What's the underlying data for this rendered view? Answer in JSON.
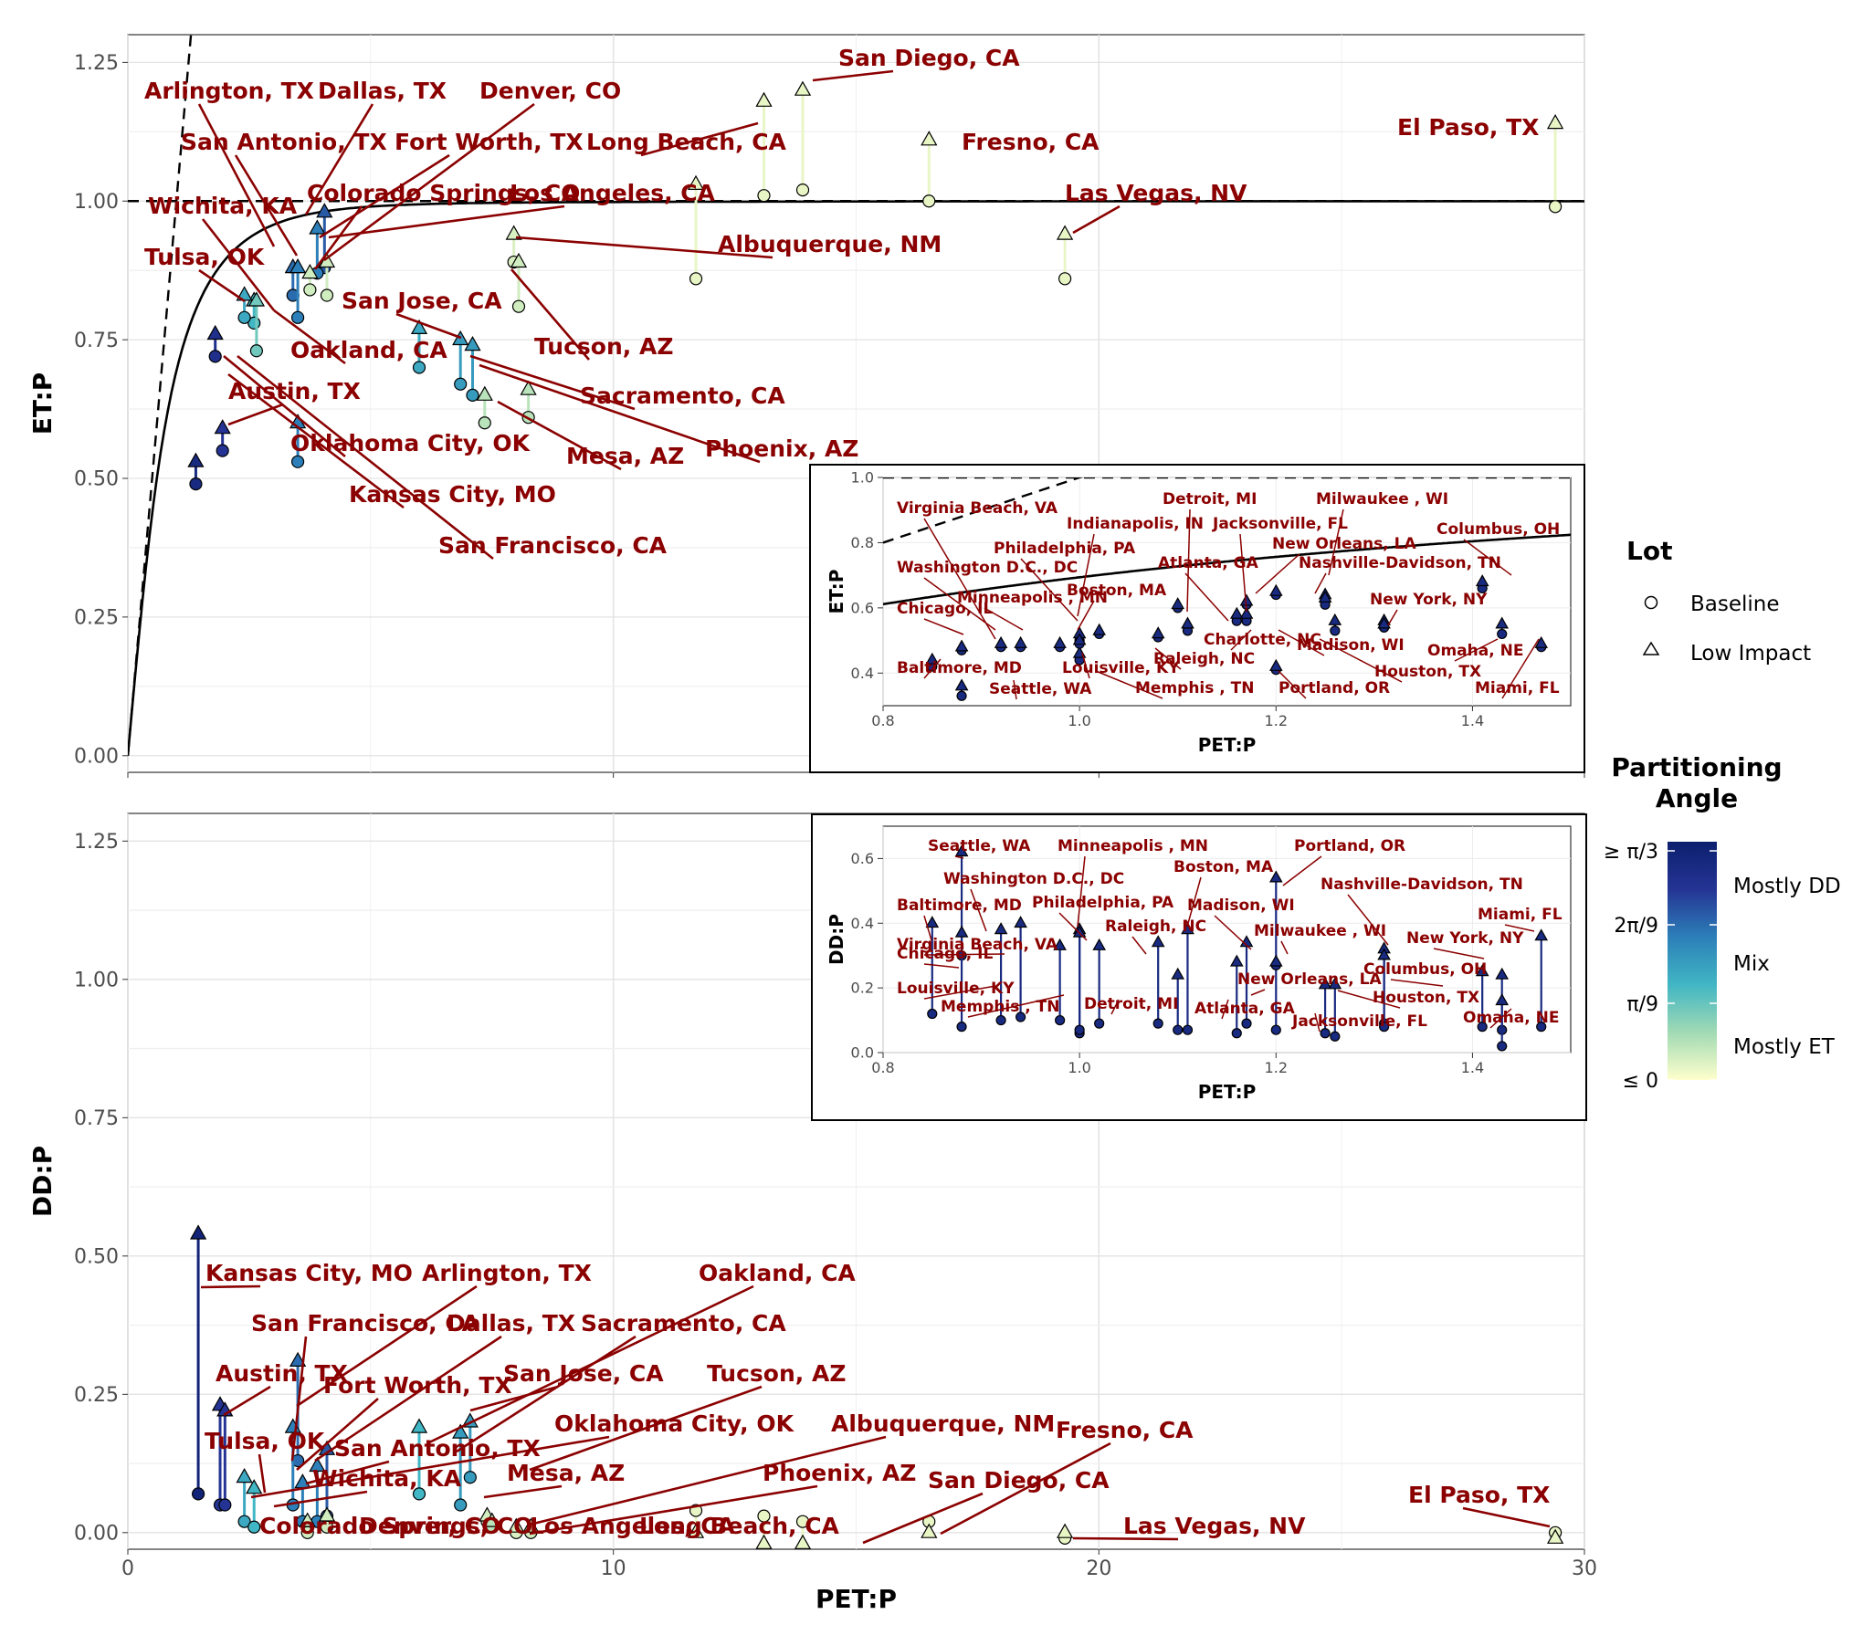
{
  "chart_data": [
    {
      "type": "scatter",
      "panel": "top-main",
      "xlabel": "PET:P",
      "ylabel": "ET:P",
      "xlim": [
        0,
        30
      ],
      "ylim": [
        -0.03,
        1.3
      ],
      "xticks": [
        "0",
        "10",
        "20",
        "30"
      ],
      "yticks": [
        "0.00",
        "0.25",
        "0.50",
        "0.75",
        "1.00",
        "1.25"
      ],
      "grid": true,
      "reference_lines": [
        "y = 1 (dashed)",
        "y = x (dashed)",
        "Budyko curve (solid)"
      ],
      "points": [
        {
          "label": "Arlington, TX",
          "x": 3.4,
          "baseline": 0.83,
          "low_impact": 0.88,
          "angle": 0.65
        },
        {
          "label": "Dallas, TX",
          "x": 4.05,
          "baseline": 0.88,
          "low_impact": 0.98,
          "angle": 0.7
        },
        {
          "label": "Denver, CO",
          "x": 4.1,
          "baseline": 0.83,
          "low_impact": 0.89,
          "angle": 0.1
        },
        {
          "label": "San Antonio, TX",
          "x": 3.5,
          "baseline": 0.79,
          "low_impact": 0.88,
          "angle": 0.6
        },
        {
          "label": "Fort Worth, TX",
          "x": 3.9,
          "baseline": 0.87,
          "low_impact": 0.95,
          "angle": 0.6
        },
        {
          "label": "Colorado Springs, CO",
          "x": 3.75,
          "baseline": 0.84,
          "low_impact": 0.87,
          "angle": 0.1
        },
        {
          "label": "Los Angeles, CA",
          "x": 11.7,
          "baseline": 0.86,
          "low_impact": 1.03,
          "angle": 0.05
        },
        {
          "label": "Long Beach, CA",
          "x": 13.1,
          "baseline": 1.01,
          "low_impact": 1.18,
          "angle": 0.05
        },
        {
          "label": "San Diego, CA",
          "x": 13.9,
          "baseline": 1.02,
          "low_impact": 1.2,
          "angle": 0.05
        },
        {
          "label": "Fresno, CA",
          "x": 16.5,
          "baseline": 1.0,
          "low_impact": 1.11,
          "angle": 0.05
        },
        {
          "label": "El Paso, TX",
          "x": 29.4,
          "baseline": 0.99,
          "low_impact": 1.14,
          "angle": 0.05
        },
        {
          "label": "Las Vegas, NV",
          "x": 19.3,
          "baseline": 0.86,
          "low_impact": 0.94,
          "angle": 0.05
        },
        {
          "label": "Albuquerque, NM",
          "x": 7.95,
          "baseline": 0.89,
          "low_impact": 0.94,
          "angle": 0.08
        },
        {
          "label": "Tucson, AZ",
          "x": 8.05,
          "baseline": 0.81,
          "low_impact": 0.89,
          "angle": 0.1
        },
        {
          "label": "Wichita, KA",
          "x": 2.6,
          "baseline": 0.78,
          "low_impact": 0.82,
          "angle": 0.4
        },
        {
          "label": "Tulsa, OK",
          "x": 2.4,
          "baseline": 0.79,
          "low_impact": 0.83,
          "angle": 0.45
        },
        {
          "label": "Oakland, CA",
          "x": 2.65,
          "baseline": 0.73,
          "low_impact": 0.82,
          "angle": 0.3
        },
        {
          "label": "San Jose, CA",
          "x": 6.0,
          "baseline": 0.7,
          "low_impact": 0.77,
          "angle": 0.45
        },
        {
          "label": "Sacramento, CA",
          "x": 6.85,
          "baseline": 0.67,
          "low_impact": 0.75,
          "angle": 0.5
        },
        {
          "label": "Phoenix, AZ",
          "x": 7.1,
          "baseline": 0.65,
          "low_impact": 0.74,
          "angle": 0.5
        },
        {
          "label": "Mesa, AZ",
          "x": 7.35,
          "baseline": 0.6,
          "low_impact": 0.65,
          "angle": 0.15
        },
        {
          "label": "Mesa, AZ (2)",
          "x": 8.25,
          "baseline": 0.61,
          "low_impact": 0.66,
          "angle": 0.15
        },
        {
          "label": "Austin, TX",
          "x": 1.95,
          "baseline": 0.55,
          "low_impact": 0.59,
          "angle": 0.8
        },
        {
          "label": "Oklahoma City, OK",
          "x": 1.8,
          "baseline": 0.72,
          "low_impact": 0.76,
          "angle": 0.85
        },
        {
          "label": "Kansas City, MO",
          "x": 1.4,
          "baseline": 0.49,
          "low_impact": 0.53,
          "angle": 0.9
        },
        {
          "label": "San Francisco, CA",
          "x": 3.5,
          "baseline": 0.53,
          "low_impact": 0.6,
          "angle": 0.6
        }
      ],
      "annotations": [
        "Arlington, TX",
        "Dallas, TX",
        "Denver, CO",
        "San Antonio, TX",
        "Fort Worth, TX",
        "Colorado Springs, CO",
        "Los Angeles, CA",
        "Wichita, KA",
        "Tulsa, OK",
        "San Jose, CA",
        "Oakland, CA",
        "Austin, TX",
        "Oklahoma City, OK",
        "Kansas City, MO",
        "San Francisco, CA",
        "San Diego, CA",
        "Long Beach, CA",
        "Fresno, CA",
        "El Paso, TX",
        "Las Vegas, NV",
        "Albuquerque, NM",
        "Tucson, AZ",
        "Sacramento, CA",
        "Phoenix, AZ",
        "Mesa, AZ"
      ]
    },
    {
      "type": "scatter",
      "panel": "top-inset",
      "xlabel": "PET:P",
      "ylabel": "ET:P",
      "xlim": [
        0.8,
        1.5
      ],
      "ylim": [
        0.3,
        1.0
      ],
      "xticks": [
        "0.8",
        "1.0",
        "1.2",
        "1.4"
      ],
      "yticks": [
        "0.4",
        "0.6",
        "0.8",
        "1.0"
      ],
      "points": [
        {
          "label": "Baltimore, MD",
          "x": 0.85,
          "baseline": 0.42,
          "low_impact": 0.44
        },
        {
          "label": "Chicago, IL",
          "x": 0.88,
          "baseline": 0.47,
          "low_impact": 0.48
        },
        {
          "label": "Seattle, WA",
          "x": 0.88,
          "baseline": 0.33,
          "low_impact": 0.36
        },
        {
          "label": "Washington D.C., DC",
          "x": 0.92,
          "baseline": 0.48,
          "low_impact": 0.49
        },
        {
          "label": "Virginia Beach, VA",
          "x": 0.94,
          "baseline": 0.48,
          "low_impact": 0.49
        },
        {
          "label": "Minneapolis , MN",
          "x": 0.98,
          "baseline": 0.48,
          "low_impact": 0.49
        },
        {
          "label": "Louisville, KY",
          "x": 1.0,
          "baseline": 0.44,
          "low_impact": 0.46
        },
        {
          "label": "Boston, MA",
          "x": 1.0,
          "baseline": 0.5,
          "low_impact": 0.52
        },
        {
          "label": "Philadelphia, PA",
          "x": 1.02,
          "baseline": 0.52,
          "low_impact": 0.53
        },
        {
          "label": "Memphis , TN",
          "x": 1.0,
          "baseline": 0.49,
          "low_impact": 0.5
        },
        {
          "label": "Raleigh, NC",
          "x": 1.08,
          "baseline": 0.51,
          "low_impact": 0.52
        },
        {
          "label": "Indianapolis, IN",
          "x": 1.1,
          "baseline": 0.6,
          "low_impact": 0.61
        },
        {
          "label": "Detroit, MI",
          "x": 1.11,
          "baseline": 0.53,
          "low_impact": 0.55
        },
        {
          "label": "Atlanta, GA",
          "x": 1.16,
          "baseline": 0.56,
          "low_impact": 0.58
        },
        {
          "label": "Charlotte, NC",
          "x": 1.17,
          "baseline": 0.56,
          "low_impact": 0.58
        },
        {
          "label": "Jacksonville, FL",
          "x": 1.17,
          "baseline": 0.61,
          "low_impact": 0.62
        },
        {
          "label": "Portland, OR",
          "x": 1.2,
          "baseline": 0.41,
          "low_impact": 0.42
        },
        {
          "label": "New Orleans, LA",
          "x": 1.2,
          "baseline": 0.64,
          "low_impact": 0.65
        },
        {
          "label": "Milwaukee , WI",
          "x": 1.25,
          "baseline": 0.62,
          "low_impact": 0.64
        },
        {
          "label": "Madison, WI",
          "x": 1.26,
          "baseline": 0.53,
          "low_impact": 0.56
        },
        {
          "label": "Nashville-Davidson, TN",
          "x": 1.25,
          "baseline": 0.61,
          "low_impact": 0.63
        },
        {
          "label": "New York, NY",
          "x": 1.31,
          "baseline": 0.54,
          "low_impact": 0.56
        },
        {
          "label": "Houston, TX",
          "x": 1.31,
          "baseline": 0.54,
          "low_impact": 0.55
        },
        {
          "label": "Columbus, OH",
          "x": 1.41,
          "baseline": 0.66,
          "low_impact": 0.68
        },
        {
          "label": "Omaha, NE",
          "x": 1.43,
          "baseline": 0.52,
          "low_impact": 0.55
        },
        {
          "label": "Miami, FL",
          "x": 1.47,
          "baseline": 0.48,
          "low_impact": 0.49
        }
      ]
    },
    {
      "type": "scatter",
      "panel": "bottom-main",
      "xlabel": "PET:P",
      "ylabel": "DD:P",
      "xlim": [
        0,
        30
      ],
      "ylim": [
        -0.03,
        1.3
      ],
      "xticks": [
        "0",
        "10",
        "20",
        "30"
      ],
      "yticks": [
        "0.00",
        "0.25",
        "0.50",
        "0.75",
        "1.00",
        "1.25"
      ],
      "grid": true,
      "points": [
        {
          "label": "Kansas City, MO",
          "x": 1.45,
          "baseline": 0.07,
          "low_impact": 0.54,
          "angle": 0.95
        },
        {
          "label": "Arlington, TX",
          "x": 3.5,
          "baseline": 0.13,
          "low_impact": 0.31,
          "angle": 0.65
        },
        {
          "label": "San Francisco, CA",
          "x": 3.4,
          "baseline": 0.05,
          "low_impact": 0.19,
          "angle": 0.6
        },
        {
          "label": "Dallas, TX",
          "x": 4.1,
          "baseline": 0.03,
          "low_impact": 0.15,
          "angle": 0.7
        },
        {
          "label": "Fort Worth, TX",
          "x": 3.9,
          "baseline": 0.02,
          "low_impact": 0.12,
          "angle": 0.6
        },
        {
          "label": "San Antonio, TX",
          "x": 3.6,
          "baseline": 0.02,
          "low_impact": 0.09,
          "angle": 0.6
        },
        {
          "label": "Austin, TX",
          "x": 1.9,
          "baseline": 0.05,
          "low_impact": 0.23,
          "angle": 0.8
        },
        {
          "label": "Tulsa, OK",
          "x": 2.4,
          "baseline": 0.02,
          "low_impact": 0.1,
          "angle": 0.45
        },
        {
          "label": "Wichita, KA",
          "x": 2.6,
          "baseline": 0.01,
          "low_impact": 0.08,
          "angle": 0.4
        },
        {
          "label": "Oakland, CA",
          "x": 6.0,
          "baseline": 0.07,
          "low_impact": 0.19,
          "angle": 0.4
        },
        {
          "label": "Sacramento, CA",
          "x": 6.85,
          "baseline": 0.05,
          "low_impact": 0.18,
          "angle": 0.5
        },
        {
          "label": "San Jose, CA",
          "x": 7.05,
          "baseline": 0.1,
          "low_impact": 0.2,
          "angle": 0.5
        },
        {
          "label": "Tucson, AZ",
          "x": 7.4,
          "baseline": 0.02,
          "low_impact": 0.03,
          "angle": 0.1
        },
        {
          "label": "Oklahoma City, OK",
          "x": 2.0,
          "baseline": 0.05,
          "low_impact": 0.22,
          "angle": 0.8
        },
        {
          "label": "Albuquerque, NM",
          "x": 8.0,
          "baseline": 0.0,
          "low_impact": 0.01,
          "angle": 0.08
        },
        {
          "label": "Mesa, AZ",
          "x": 7.5,
          "baseline": 0.01,
          "low_impact": 0.02,
          "angle": 0.15
        },
        {
          "label": "Phoenix, AZ",
          "x": 8.3,
          "baseline": 0.0,
          "low_impact": 0.01,
          "angle": 0.1
        },
        {
          "label": "Los Angeles, CA",
          "x": 11.7,
          "baseline": 0.04,
          "low_impact": 0.0,
          "angle": 0.05
        },
        {
          "label": "Long Beach, CA",
          "x": 13.1,
          "baseline": 0.03,
          "low_impact": -0.02,
          "angle": 0.05
        },
        {
          "label": "San Diego, CA",
          "x": 13.9,
          "baseline": 0.02,
          "low_impact": -0.02,
          "angle": 0.05
        },
        {
          "label": "Fresno, CA",
          "x": 16.5,
          "baseline": 0.02,
          "low_impact": 0.0,
          "angle": 0.05
        },
        {
          "label": "Las Vegas, NV",
          "x": 19.3,
          "baseline": -0.01,
          "low_impact": 0.0,
          "angle": 0.05
        },
        {
          "label": "El Paso, TX",
          "x": 29.4,
          "baseline": 0.0,
          "low_impact": -0.01,
          "angle": 0.05
        },
        {
          "label": "Colorado Springs, CO",
          "x": 3.7,
          "baseline": 0.0,
          "low_impact": 0.02,
          "angle": 0.1
        },
        {
          "label": "Denver, CO",
          "x": 4.1,
          "baseline": 0.01,
          "low_impact": 0.03,
          "angle": 0.1
        }
      ],
      "annotations": [
        "Kansas City, MO",
        "Arlington, TX",
        "Oakland, CA",
        "San Francisco, CA",
        "Dallas, TX",
        "Sacramento, CA",
        "Austin, TX",
        "Fort Worth, TX",
        "San Jose, CA",
        "Tucson, AZ",
        "Oklahoma City, OK",
        "Tulsa, OK",
        "Albuquerque, NM",
        "San Antonio, TX",
        "Fresno, CA",
        "Wichita, KA",
        "Mesa, AZ",
        "Phoenix, AZ",
        "San Diego, CA",
        "El Paso, TX",
        "Colorado Springs, CO",
        "Denver, CO",
        "Los Angeles, CA",
        "Long Beach, CA",
        "Las Vegas, NV"
      ]
    },
    {
      "type": "scatter",
      "panel": "bottom-inset",
      "xlabel": "PET:P",
      "ylabel": "DD:P",
      "xlim": [
        0.8,
        1.5
      ],
      "ylim": [
        0.0,
        0.7
      ],
      "xticks": [
        "0.8",
        "1.0",
        "1.2",
        "1.4"
      ],
      "yticks": [
        "0.0",
        "0.2",
        "0.4",
        "0.6"
      ],
      "points": [
        {
          "label": "Seattle, WA",
          "x": 0.88,
          "baseline": 0.3,
          "low_impact": 0.62
        },
        {
          "label": "Baltimore, MD",
          "x": 0.85,
          "baseline": 0.12,
          "low_impact": 0.4
        },
        {
          "label": "Chicago, IL",
          "x": 0.88,
          "baseline": 0.08,
          "low_impact": 0.37
        },
        {
          "label": "Washington D.C., DC",
          "x": 0.92,
          "baseline": 0.1,
          "low_impact": 0.38
        },
        {
          "label": "Virginia Beach, VA",
          "x": 0.94,
          "baseline": 0.11,
          "low_impact": 0.4
        },
        {
          "label": "Philadelphia, PA",
          "x": 1.02,
          "baseline": 0.09,
          "low_impact": 0.33
        },
        {
          "label": "Minneapolis , MN",
          "x": 1.0,
          "baseline": 0.06,
          "low_impact": 0.38
        },
        {
          "label": "Louisville, KY",
          "x": 0.98,
          "baseline": 0.1,
          "low_impact": 0.33
        },
        {
          "label": "Memphis , TN",
          "x": 1.0,
          "baseline": 0.07,
          "low_impact": 0.37
        },
        {
          "label": "Boston, MA",
          "x": 1.11,
          "baseline": 0.07,
          "low_impact": 0.38
        },
        {
          "label": "Raleigh, NC",
          "x": 1.08,
          "baseline": 0.09,
          "low_impact": 0.34
        },
        {
          "label": "Detroit, MI",
          "x": 1.1,
          "baseline": 0.07,
          "low_impact": 0.24
        },
        {
          "label": "Madison, WI",
          "x": 1.17,
          "baseline": 0.09,
          "low_impact": 0.34
        },
        {
          "label": "Atlanta, GA",
          "x": 1.16,
          "baseline": 0.06,
          "low_impact": 0.28
        },
        {
          "label": "Portland, OR",
          "x": 1.2,
          "baseline": 0.07,
          "low_impact": 0.54
        },
        {
          "label": "Milwaukee , WI",
          "x": 1.2,
          "baseline": 0.27,
          "low_impact": 0.28
        },
        {
          "label": "New Orleans, LA",
          "x": 1.25,
          "baseline": 0.06,
          "low_impact": 0.21
        },
        {
          "label": "Jacksonville, FL",
          "x": 1.26,
          "baseline": 0.05,
          "low_impact": 0.21
        },
        {
          "label": "Nashville-Davidson, TN",
          "x": 1.31,
          "baseline": 0.09,
          "low_impact": 0.32
        },
        {
          "label": "Houston, TX",
          "x": 1.31,
          "baseline": 0.08,
          "low_impact": 0.3
        },
        {
          "label": "Columbus, OH",
          "x": 1.41,
          "baseline": 0.08,
          "low_impact": 0.25
        },
        {
          "label": "New York, NY",
          "x": 1.43,
          "baseline": 0.07,
          "low_impact": 0.24
        },
        {
          "label": "Omaha, NE",
          "x": 1.43,
          "baseline": 0.02,
          "low_impact": 0.16
        },
        {
          "label": "Miami, FL",
          "x": 1.47,
          "baseline": 0.08,
          "low_impact": 0.36
        }
      ]
    }
  ],
  "legend": {
    "lot_title": "Lot",
    "lot_items": [
      "Baseline",
      "Low Impact"
    ],
    "angle_title": "Partitioning\nAngle",
    "angle_ticks": [
      "≥ π/3",
      "2π/9",
      "π/9",
      "≤ 0"
    ],
    "angle_labels": [
      "Mostly DD",
      "Mix",
      "Mostly ET"
    ],
    "colors": [
      "#ffffcc",
      "#a1dab4",
      "#41b6c4",
      "#2c7fb8",
      "#253494",
      "#0c1f6e"
    ]
  },
  "label_color": "#8b0000"
}
